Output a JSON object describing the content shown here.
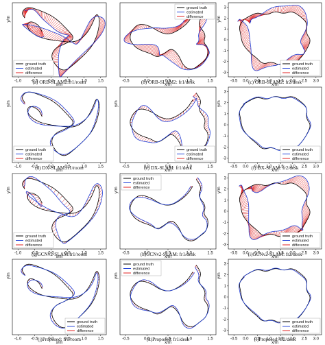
{
  "chart_data": [
    {
      "type": "line",
      "caption": "(a) ORB-SLAM2:fr1/room",
      "scene": "room",
      "diff": "big",
      "xlabel": "x/m",
      "ylabel": "y/m",
      "xticks": [
        "-1.0",
        "-0.5",
        "0.0",
        "0.5",
        "1.0",
        "1.5"
      ],
      "yticks": [],
      "legend": "bottom-left",
      "series": [
        {
          "name": "ground truth",
          "color": "#000000"
        },
        {
          "name": "estimated",
          "color": "#1f3fd8"
        },
        {
          "name": "difference",
          "color": "#e02020"
        }
      ]
    },
    {
      "type": "line",
      "caption": "(b) ORB-SLAM2: fr1/desk",
      "scene": "desk",
      "diff": "big",
      "xlabel": "x/m",
      "ylabel": "",
      "xticks": [
        "-0.5",
        "0.0",
        "0.5",
        "1.0",
        "1.5"
      ],
      "yticks": [],
      "legend": "top-right",
      "series": [
        {
          "name": "ground truth",
          "color": "#000000"
        },
        {
          "name": "estimated",
          "color": "#1f3fd8"
        },
        {
          "name": "difference",
          "color": "#e02020"
        }
      ]
    },
    {
      "type": "line",
      "caption": "(c) ORB-SLAM2: fr2/desk",
      "scene": "desk2",
      "diff": "big",
      "xlabel": "x/m",
      "ylabel": "y/m",
      "xticks": [
        "-0.5",
        "0.0",
        "0.5",
        "1.0",
        "1.5",
        "2.0",
        "2.5",
        "3.0"
      ],
      "yticks": [
        "3",
        "2",
        "1",
        "0",
        "-1",
        "-2",
        "-3"
      ],
      "legend": "bottom-right",
      "series": [
        {
          "name": "ground truth",
          "color": "#000000"
        },
        {
          "name": "estimated",
          "color": "#1f3fd8"
        },
        {
          "name": "difference",
          "color": "#e02020"
        }
      ]
    },
    {
      "type": "line",
      "caption": "(d) DX-SLAM:fr1/room",
      "scene": "room",
      "diff": "small",
      "xlabel": "x/m",
      "ylabel": "y/m",
      "xticks": [
        "-1.0",
        "-0.5",
        "0.0",
        "0.5",
        "1.0",
        "1.5"
      ],
      "yticks": [],
      "legend": "bottom-left",
      "series": [
        {
          "name": "ground truth",
          "color": "#000000"
        },
        {
          "name": "estimated",
          "color": "#1f3fd8"
        },
        {
          "name": "difference",
          "color": "#e02020"
        }
      ]
    },
    {
      "type": "line",
      "caption": "(e) DX-SLAM: fr1/desk",
      "scene": "desk",
      "diff": "medium",
      "xlabel": "x/m",
      "ylabel": "y/m",
      "xticks": [
        "-0.5",
        "0.0",
        "0.5",
        "1.0",
        "1.5"
      ],
      "yticks": [],
      "legend": "bottom-right",
      "series": [
        {
          "name": "ground truth",
          "color": "#000000"
        },
        {
          "name": "estimated",
          "color": "#1f3fd8"
        },
        {
          "name": "difference",
          "color": "#e02020"
        }
      ]
    },
    {
      "type": "line",
      "caption": "(f) DX-SLAM: fr2/desk",
      "scene": "desk2",
      "diff": "tiny",
      "xlabel": "x/m",
      "ylabel": "y/m",
      "xticks": [
        "-0.5",
        "0.0",
        "0.5",
        "1.0",
        "1.5",
        "2.0",
        "2.5",
        "3.0"
      ],
      "yticks": [
        "3",
        "2",
        "1",
        "0",
        "-1",
        "-2",
        "-3"
      ],
      "legend": "bottom-right",
      "series": [
        {
          "name": "ground truth",
          "color": "#000000"
        },
        {
          "name": "estimated",
          "color": "#1f3fd8"
        },
        {
          "name": "difference",
          "color": "#e02020"
        }
      ]
    },
    {
      "type": "line",
      "caption": "(g)GCNv2-SLAM:fr1/room",
      "scene": "room",
      "diff": "medium",
      "xlabel": "x/m",
      "ylabel": "y/m",
      "xticks": [
        "-1.0",
        "-0.5",
        "0.0",
        "0.5",
        "1.0",
        "1.5"
      ],
      "yticks": [],
      "legend": "bottom-left",
      "series": [
        {
          "name": "ground truth",
          "color": "#000000"
        },
        {
          "name": "estimated",
          "color": "#1f3fd8"
        },
        {
          "name": "difference",
          "color": "#e02020"
        }
      ]
    },
    {
      "type": "line",
      "caption": "(h)GCNv2-SLAM: fr1/desk",
      "scene": "desk",
      "diff": "small",
      "xlabel": "x/m",
      "ylabel": "y/m",
      "xticks": [
        "-0.5",
        "0.0",
        "0.5",
        "1.0",
        "1.5"
      ],
      "yticks": [],
      "legend": "top-left",
      "series": [
        {
          "name": "ground truth",
          "color": "#000000"
        },
        {
          "name": "estimated",
          "color": "#1f3fd8"
        },
        {
          "name": "difference",
          "color": "#e02020"
        }
      ]
    },
    {
      "type": "line",
      "caption": "(i)GCNv2-SLAM: fr2/desk",
      "scene": "desk2",
      "diff": "big",
      "xlabel": "x/m",
      "ylabel": "y/m",
      "xticks": [
        "-0.5",
        "0.0",
        "0.5",
        "1.0",
        "1.5",
        "2.0",
        "2.5",
        "3.0"
      ],
      "yticks": [
        "3",
        "2",
        "1",
        "0",
        "-1",
        "-2",
        "-3"
      ],
      "legend": "bottom-right",
      "series": [
        {
          "name": "ground truth",
          "color": "#000000"
        },
        {
          "name": "estimated",
          "color": "#1f3fd8"
        },
        {
          "name": "difference",
          "color": "#e02020"
        }
      ]
    },
    {
      "type": "line",
      "caption": "(j)Proposed: fr1/room",
      "scene": "room",
      "diff": "small",
      "xlabel": "x/m",
      "ylabel": "y/m",
      "xticks": [
        "-1.0",
        "-0.5",
        "0.0",
        "0.5",
        "1.0",
        "1.5"
      ],
      "yticks": [],
      "legend": "bottom-right",
      "series": [
        {
          "name": "ground truth",
          "color": "#000000"
        },
        {
          "name": "estimated",
          "color": "#1f3fd8"
        },
        {
          "name": "difference",
          "color": "#e02020"
        }
      ]
    },
    {
      "type": "line",
      "caption": "(k)Proposed: fr1/desk",
      "scene": "desk",
      "diff": "small",
      "xlabel": "x/m",
      "ylabel": "y/m",
      "xticks": [
        "-0.5",
        "0.0",
        "0.5",
        "1.0",
        "1.5"
      ],
      "yticks": [],
      "legend": "top-left",
      "series": [
        {
          "name": "ground truth",
          "color": "#000000"
        },
        {
          "name": "estimated",
          "color": "#1f3fd8"
        },
        {
          "name": "difference",
          "color": "#e02020"
        }
      ]
    },
    {
      "type": "line",
      "caption": "(l)Proposed: fr2/desk",
      "scene": "desk2",
      "diff": "tiny",
      "xlabel": "x/m",
      "ylabel": "y/m",
      "xticks": [
        "-0.5",
        "0.0",
        "0.5",
        "1.0",
        "1.5",
        "2.0",
        "2.5",
        "3.0"
      ],
      "yticks": [
        "3",
        "2",
        "1",
        "0",
        "-1",
        "-2",
        "-3"
      ],
      "legend": "bottom-right",
      "series": [
        {
          "name": "ground truth",
          "color": "#000000"
        },
        {
          "name": "estimated",
          "color": "#1f3fd8"
        },
        {
          "name": "difference",
          "color": "#e02020"
        }
      ]
    }
  ]
}
